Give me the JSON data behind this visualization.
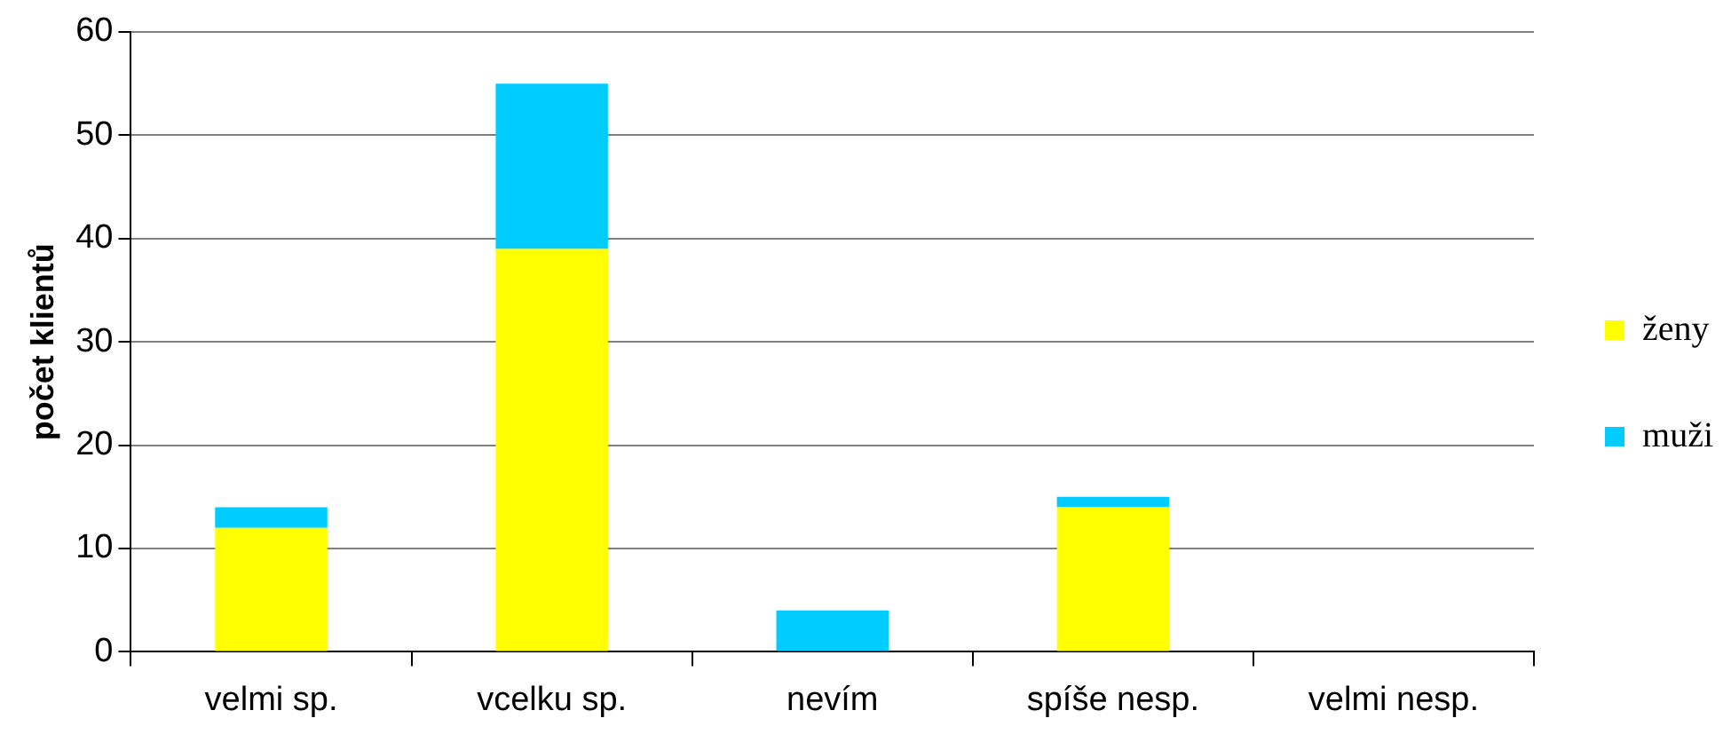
{
  "chart_data": {
    "type": "bar",
    "ylabel": "počet klientů",
    "categories": [
      "velmi sp.",
      "vcelku sp.",
      "nevím",
      "spíše nesp.",
      "velmi nesp."
    ],
    "series": [
      {
        "name": "ženy",
        "color": "#ffff00",
        "values": [
          12,
          39,
          0,
          14,
          0
        ]
      },
      {
        "name": "muži",
        "color": "#00ccff",
        "values": [
          2,
          16,
          4,
          1,
          0
        ]
      }
    ],
    "stacked": true,
    "ylim": [
      0,
      60
    ],
    "yticks": [
      0,
      10,
      20,
      30,
      40,
      50,
      60
    ],
    "grid": "y",
    "legend": "right"
  }
}
